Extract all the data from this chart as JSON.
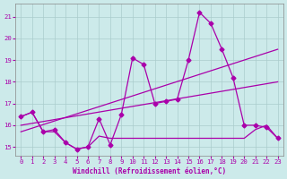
{
  "xlabel": "Windchill (Refroidissement éolien,°C)",
  "bg_color": "#cceaea",
  "grid_color": "#aacccc",
  "line_color": "#aa00aa",
  "xlim": [
    -0.5,
    23.5
  ],
  "ylim": [
    14.6,
    21.6
  ],
  "yticks": [
    15,
    16,
    17,
    18,
    19,
    20,
    21
  ],
  "xticks": [
    0,
    1,
    2,
    3,
    4,
    5,
    6,
    7,
    8,
    9,
    10,
    11,
    12,
    13,
    14,
    15,
    16,
    17,
    18,
    19,
    20,
    21,
    22,
    23
  ],
  "series_main_x": [
    0,
    1,
    2,
    3,
    4,
    5,
    6,
    7,
    8,
    9,
    10,
    11,
    12,
    13,
    14,
    15,
    16,
    17,
    18,
    19,
    20,
    21,
    22,
    23
  ],
  "series_main_y": [
    16.4,
    16.6,
    15.7,
    15.8,
    15.2,
    14.9,
    15.0,
    16.3,
    15.1,
    16.5,
    19.1,
    18.8,
    17.0,
    17.1,
    17.2,
    19.0,
    21.2,
    20.7,
    19.5,
    18.2,
    16.0,
    16.0,
    15.9,
    15.4
  ],
  "series_trend1_x": [
    0,
    23
  ],
  "series_trend1_y": [
    16.0,
    18.0
  ],
  "series_trend2_x": [
    0,
    23
  ],
  "series_trend2_y": [
    15.7,
    19.5
  ],
  "series_flat_x": [
    0,
    1,
    2,
    3,
    4,
    5,
    6,
    7,
    8,
    9,
    10,
    11,
    12,
    13,
    14,
    15,
    16,
    17,
    18,
    19,
    20,
    21,
    22,
    23
  ],
  "series_flat_y": [
    16.4,
    16.6,
    15.7,
    15.7,
    15.2,
    14.9,
    15.0,
    15.5,
    15.4,
    15.4,
    15.4,
    15.4,
    15.4,
    15.4,
    15.4,
    15.4,
    15.4,
    15.4,
    15.4,
    15.4,
    15.4,
    15.8,
    16.0,
    15.4
  ],
  "marker": "D",
  "markersize": 2.5,
  "linewidth": 0.9
}
